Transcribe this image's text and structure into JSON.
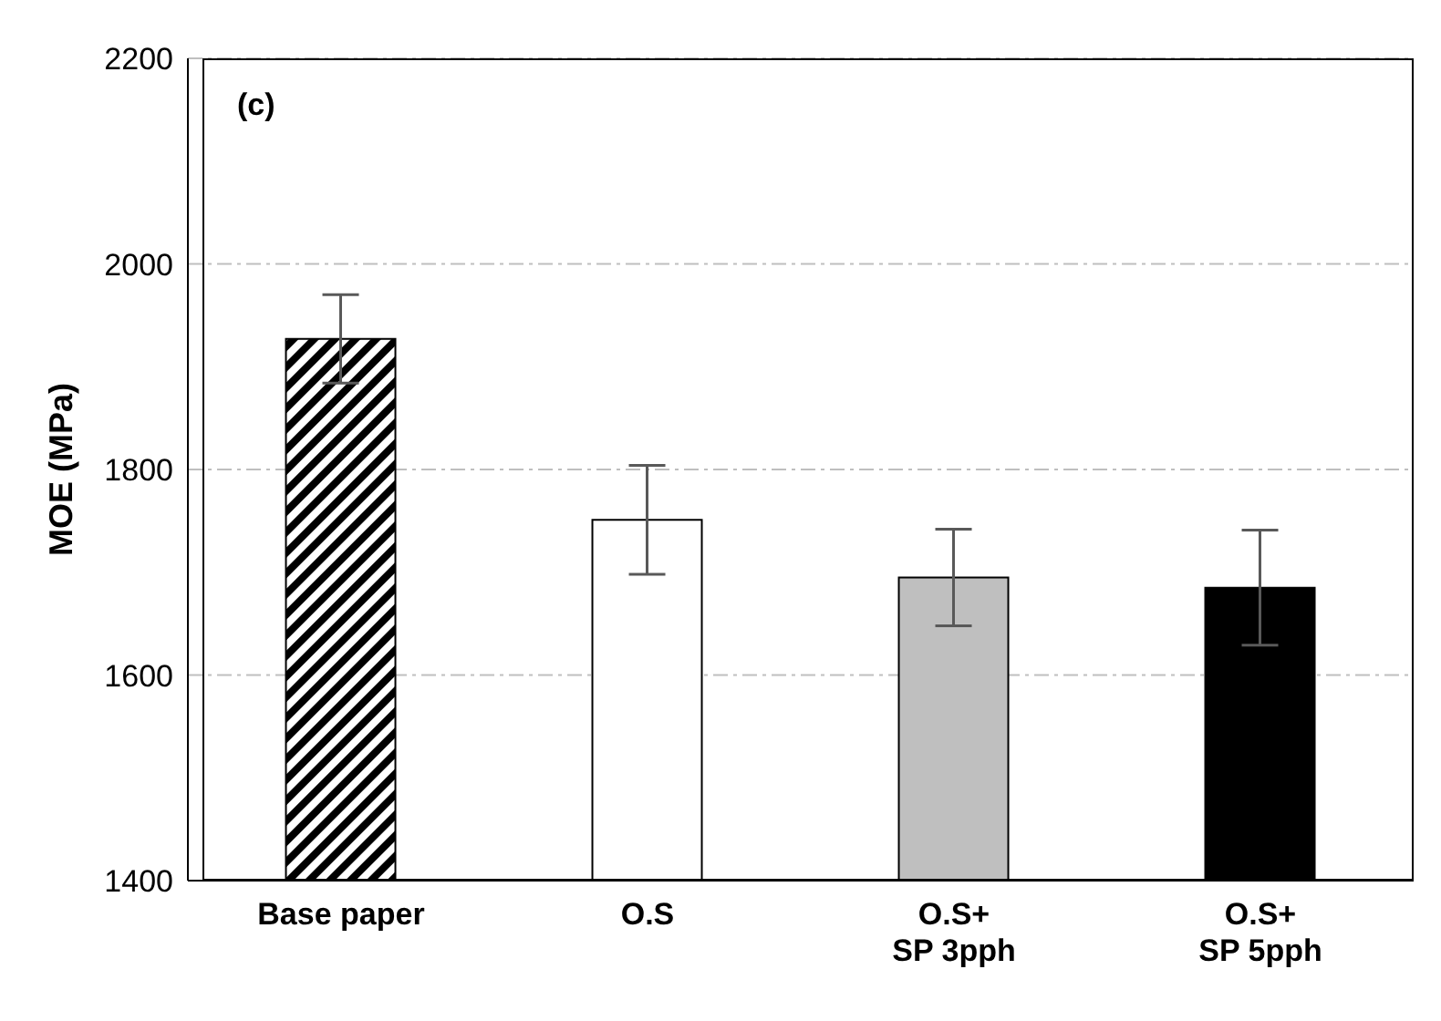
{
  "chart_data": {
    "type": "bar",
    "ylabel": "MOE (MPa)",
    "annotations": [
      "(c)"
    ],
    "categories": [
      "Base paper",
      "O.S",
      "O.S+\nSP 3pph",
      "O.S+\nSP 5pph"
    ],
    "values": [
      1927,
      1751,
      1695,
      1685
    ],
    "errors": [
      43,
      53,
      47,
      56
    ],
    "colors": [
      "#000000",
      "#ffffff",
      "#bfbfbf",
      "#000000"
    ],
    "ylim": [
      1400,
      2200
    ],
    "yticks": [
      1400,
      1600,
      1800,
      2000,
      2200
    ],
    "grid": "y"
  }
}
